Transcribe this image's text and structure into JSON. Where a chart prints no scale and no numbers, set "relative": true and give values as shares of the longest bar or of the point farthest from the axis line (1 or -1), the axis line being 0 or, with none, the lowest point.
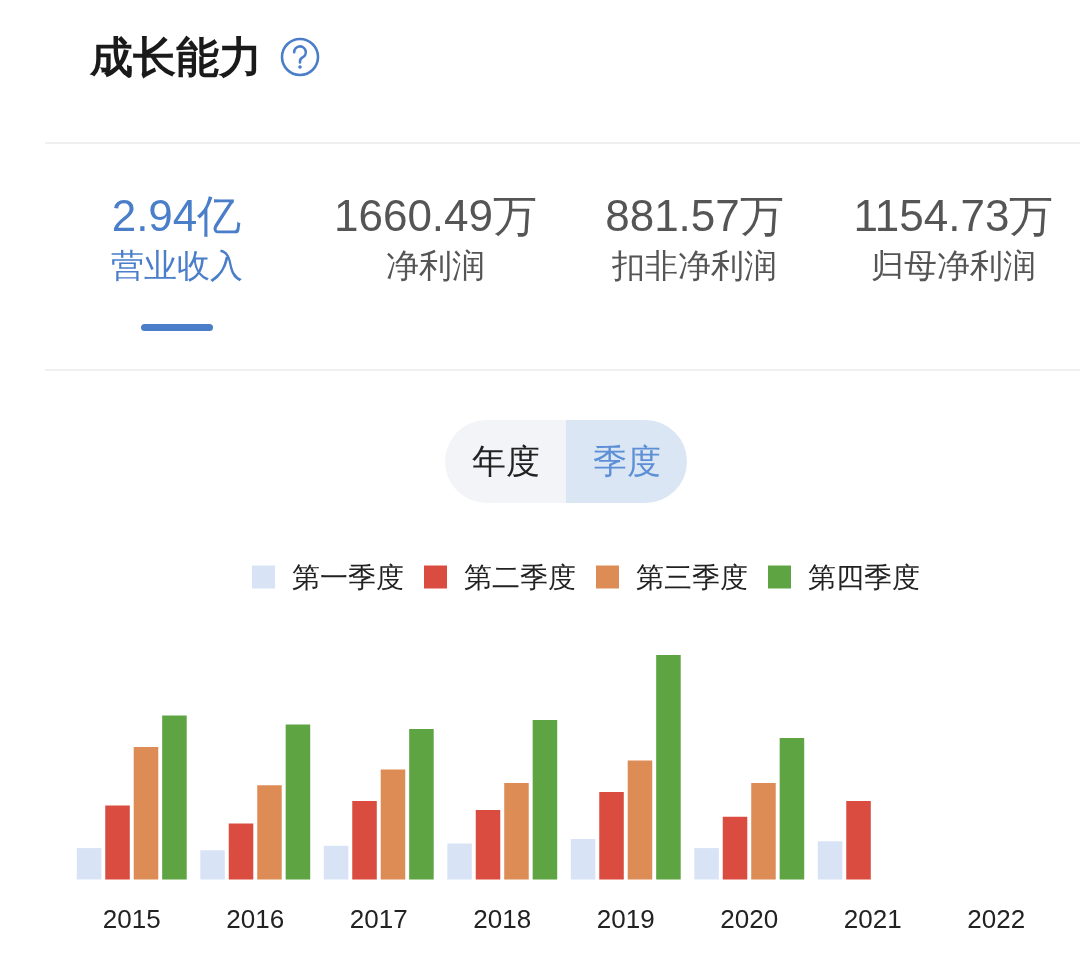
{
  "chart_data": {
    "type": "bar",
    "title": "成长能力",
    "annotations": [
      "2.94亿",
      "营业收入",
      "1660.49万",
      "净利润",
      "881.57万",
      "扣非净利润",
      "1154.73万",
      "归母净利润",
      "年度",
      "季度"
    ],
    "categories": [
      "2015",
      "2016",
      "2017",
      "2018",
      "2019",
      "2020",
      "2021",
      "2022"
    ],
    "relative": true,
    "legend": "top",
    "series": [
      {
        "name": "第一季度",
        "color": "#d8e4f5",
        "values": [
          0.14,
          0.13,
          0.15,
          0.16,
          0.18,
          0.14,
          0.17,
          null
        ]
      },
      {
        "name": "第二季度",
        "color": "#d94c3f",
        "values": [
          0.33,
          0.25,
          0.35,
          0.31,
          0.39,
          0.28,
          0.35,
          null
        ]
      },
      {
        "name": "第三季度",
        "color": "#de8c55",
        "values": [
          0.59,
          0.42,
          0.49,
          0.43,
          0.53,
          0.43,
          null,
          null
        ]
      },
      {
        "name": "第四季度",
        "color": "#5fa443",
        "values": [
          0.73,
          0.69,
          0.67,
          0.71,
          1,
          0.63,
          null,
          null
        ]
      }
    ]
  }
}
